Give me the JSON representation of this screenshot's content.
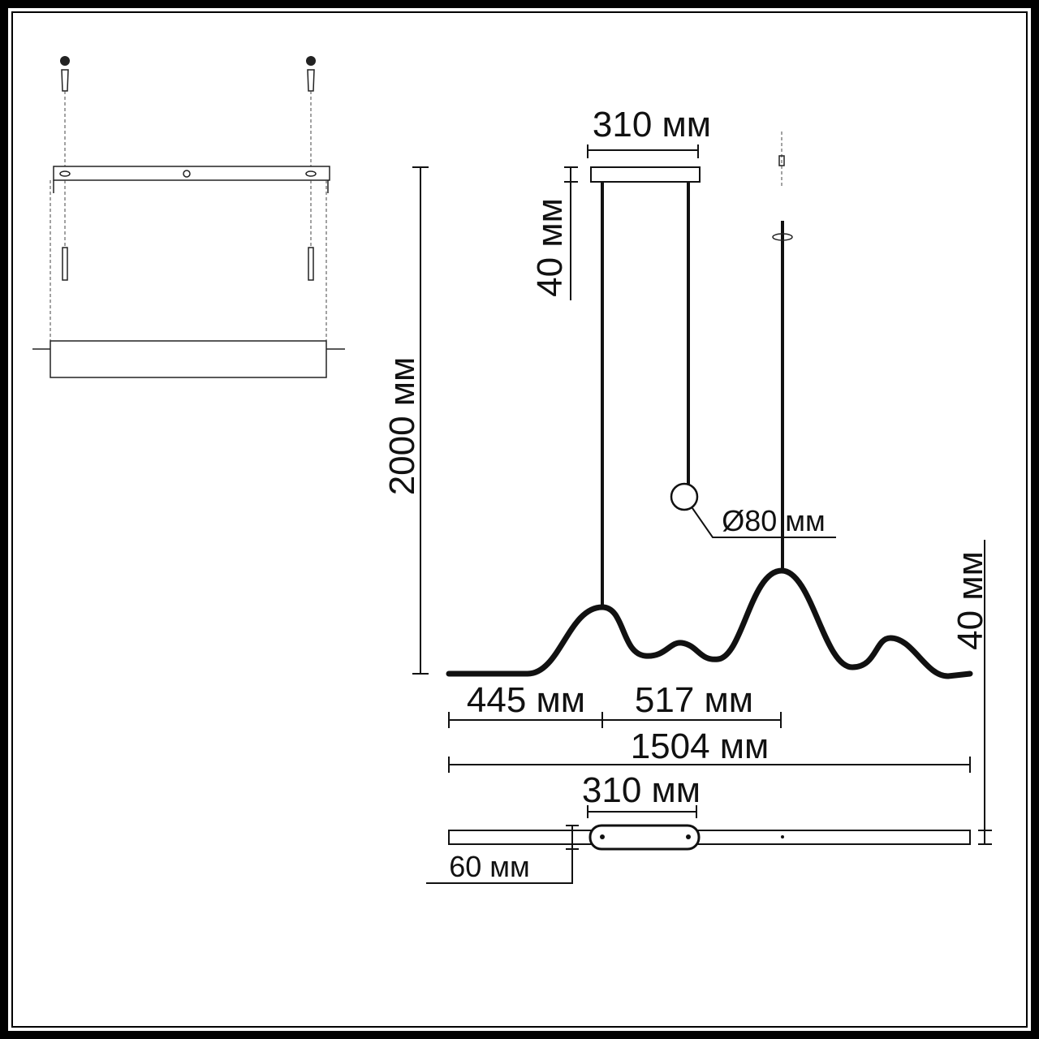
{
  "dimensions": {
    "canopy_width": "310 мм",
    "canopy_height": "40 мм",
    "total_height": "2000 мм",
    "shade_diameter": "Ø80 мм",
    "body_height": "40 мм",
    "offset_left": "445 мм",
    "offset_between": "517 мм",
    "total_length": "1504 мм",
    "bottom_canopy_width": "310 мм",
    "body_width": "60 мм"
  }
}
